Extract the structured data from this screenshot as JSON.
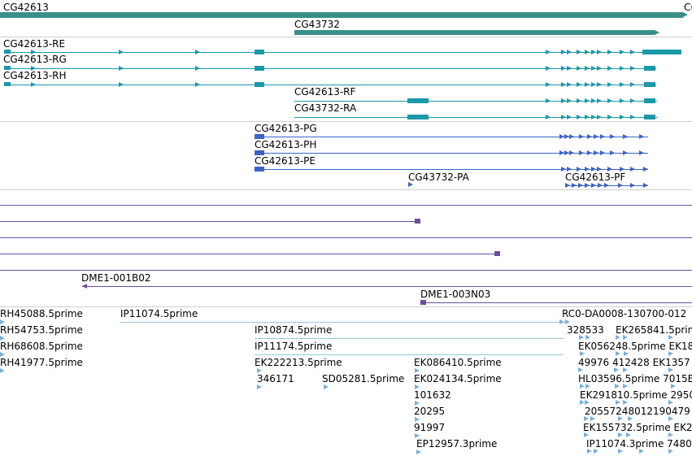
{
  "genes": [
    {
      "name": "CG42613"
    },
    {
      "name": "CG43732"
    },
    {
      "name": "C("
    }
  ],
  "transcripts": [
    "CG42613-RE",
    "CG42613-RG",
    "CG42613-RH",
    "CG42613-RF",
    "CG43732-RA"
  ],
  "proteins": [
    "CG42613-PG",
    "CG42613-PH",
    "CG42613-PE",
    "CG43732-PA",
    "CG42613-PF"
  ],
  "clones": [
    "DME1-001B02",
    "DME1-003N03"
  ],
  "ests": [
    "RH45088.5prime",
    "RH54753.5prime",
    "RH68608.5prime",
    "RH41977.5prime",
    "IP11074.5prime",
    "IP10874.5prime",
    "IP11174.5prime",
    "EK222213.5prime",
    "346171",
    "SD05281.5prime",
    "EK086410.5prime",
    "EK024134.5prime",
    "101632",
    "20295",
    "91997",
    "EP12957.3prime",
    "RC0-DA0008-130700-012",
    "328533",
    "EK265841.5prime",
    "EK056248.5prime EK18",
    "49976  412428 EK1357",
    "",
    "HL03596.5prime 7015EK",
    "EK291810.5prime 2950",
    "20557248012190479",
    "EK155732.5prime EK2",
    "IP11074.3prime 74802"
  ],
  "colors": {
    "gene": "#3a8f8a",
    "transcript": "#1a99a8",
    "protein": "#3b63c7",
    "clone": "#6a4ea0",
    "est": "#7bafd4"
  }
}
